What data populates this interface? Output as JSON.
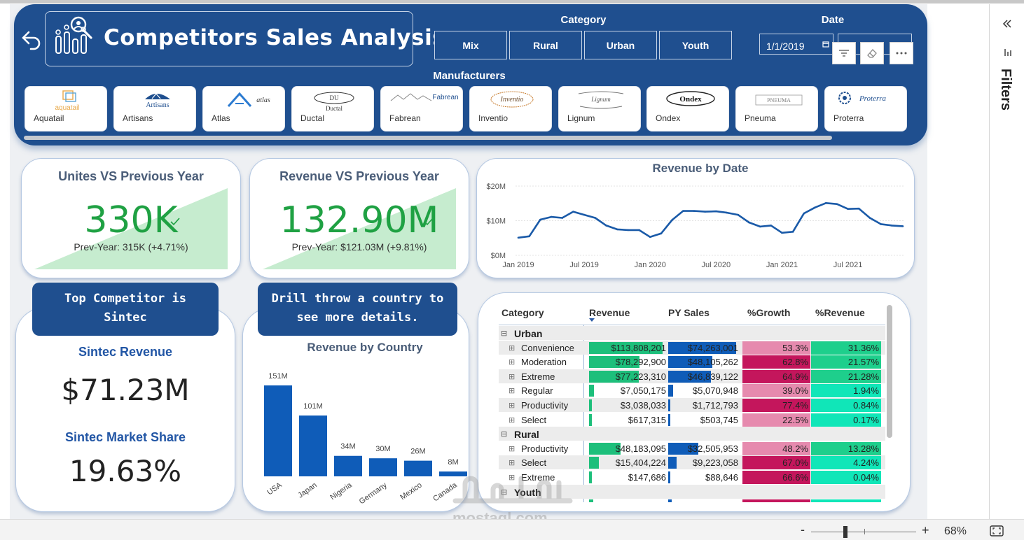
{
  "header": {
    "title": "Competitors Sales Analysis",
    "category_label": "Category",
    "categories": [
      "Mix",
      "Rural",
      "Urban",
      "Youth"
    ],
    "date_label": "Date",
    "date_start": "1/1/2019",
    "manufacturers_label": "Manufacturers",
    "manufacturers": [
      "Aquatail",
      "Artisans",
      "Atlas",
      "Ductal",
      "Fabrean",
      "Inventio",
      "Lignum",
      "Ondex",
      "Pneuma",
      "Proterra"
    ],
    "logo_texts": [
      "aquatail",
      "Artisans",
      "atlas",
      "Ductal",
      "Fabrean",
      "Inventio",
      "Lignum",
      "Ondex",
      "PNEUMA",
      "Proterra"
    ]
  },
  "kpi_units": {
    "title": "Unites VS Previous Year",
    "value": "330K",
    "sub": "Prev-Year: 315K (+4.71%)"
  },
  "kpi_revenue": {
    "title": "Revenue VS Previous Year",
    "value": "132.90M",
    "sub": "Prev-Year: $121.03M (+9.81%)"
  },
  "banners": {
    "top": "Top Competitor is Sintec",
    "drill": "Drill throw a country to see more details."
  },
  "sintec": {
    "rev_label": "Sintec Revenue",
    "rev_value": "$71.23M",
    "share_label": "Sintec Market Share",
    "share_value": "19.63%"
  },
  "chart_data": [
    {
      "type": "line",
      "title": "Revenue by Date",
      "x_ticks": [
        "Jan 2019",
        "Jul 2019",
        "Jan 2020",
        "Jul 2020",
        "Jan 2021",
        "Jul 2021"
      ],
      "y_ticks": [
        "$0M",
        "$10M",
        "$20M"
      ],
      "ylim": [
        0,
        20
      ],
      "x": [
        "2019-01",
        "2019-02",
        "2019-03",
        "2019-04",
        "2019-05",
        "2019-06",
        "2019-07",
        "2019-08",
        "2019-09",
        "2019-10",
        "2019-11",
        "2019-12",
        "2020-01",
        "2020-02",
        "2020-03",
        "2020-04",
        "2020-05",
        "2020-06",
        "2020-07",
        "2020-08",
        "2020-09",
        "2020-10",
        "2020-11",
        "2020-12",
        "2021-01",
        "2021-02",
        "2021-03",
        "2021-04",
        "2021-05",
        "2021-06",
        "2021-07",
        "2021-08",
        "2021-09",
        "2021-10",
        "2021-11",
        "2021-12"
      ],
      "values": [
        5.1,
        5.5,
        10.3,
        11.1,
        10.8,
        12.6,
        11.7,
        10.8,
        8.6,
        7.5,
        7.3,
        7.3,
        5.3,
        6.3,
        10.2,
        12.8,
        12.8,
        12.6,
        12.7,
        12.3,
        11.7,
        9.5,
        8.3,
        8.6,
        6.5,
        6.8,
        12.1,
        13.8,
        15.1,
        14.8,
        13.4,
        13.5,
        10.8,
        9.0,
        8.6,
        8.4
      ],
      "grid": true
    },
    {
      "type": "bar",
      "title": "Revenue by Country",
      "categories": [
        "USA",
        "Japan",
        "Nigeria",
        "Germany",
        "Mexico",
        "Canada"
      ],
      "values": [
        151,
        101,
        34,
        30,
        26,
        8
      ],
      "labels": [
        "151M",
        "101M",
        "34M",
        "30M",
        "26M",
        "8M"
      ]
    }
  ],
  "matrix": {
    "columns": [
      "Category",
      "Revenue",
      "PY Sales",
      "%Growth",
      "%Revenue"
    ],
    "groups": [
      "Urban",
      "Rural",
      "Youth"
    ],
    "rows": [
      {
        "type": "group",
        "label": "Urban"
      },
      {
        "type": "item",
        "label": "Convenience",
        "rev": 113808201,
        "rev_text": "$113,808,201",
        "py": 74263001,
        "py_text": "$74,263,001",
        "growth": 53.3,
        "growth_text": "53.3%",
        "share": 31.36,
        "share_text": "31.36%"
      },
      {
        "type": "item",
        "label": "Moderation",
        "rev": 78292900,
        "rev_text": "$78,292,900",
        "py": 48105262,
        "py_text": "$48,105,262",
        "growth": 62.8,
        "growth_text": "62.8%",
        "share": 21.57,
        "share_text": "21.57%"
      },
      {
        "type": "item",
        "label": "Extreme",
        "rev": 77223310,
        "rev_text": "$77,223,310",
        "py": 46839122,
        "py_text": "$46,839,122",
        "growth": 64.9,
        "growth_text": "64.9%",
        "share": 21.28,
        "share_text": "21.28%"
      },
      {
        "type": "item",
        "label": "Regular",
        "rev": 7050175,
        "rev_text": "$7,050,175",
        "py": 5070948,
        "py_text": "$5,070,948",
        "growth": 39.0,
        "growth_text": "39.0%",
        "share": 1.94,
        "share_text": "1.94%"
      },
      {
        "type": "item",
        "label": "Productivity",
        "rev": 3038033,
        "rev_text": "$3,038,033",
        "py": 1712793,
        "py_text": "$1,712,793",
        "growth": 77.4,
        "growth_text": "77.4%",
        "share": 0.84,
        "share_text": "0.84%"
      },
      {
        "type": "item",
        "label": "Select",
        "rev": 617315,
        "rev_text": "$617,315",
        "py": 503745,
        "py_text": "$503,745",
        "growth": 22.5,
        "growth_text": "22.5%",
        "share": 0.17,
        "share_text": "0.17%"
      },
      {
        "type": "group",
        "label": "Rural"
      },
      {
        "type": "item",
        "label": "Productivity",
        "rev": 48183095,
        "rev_text": "$48,183,095",
        "py": 32505953,
        "py_text": "$32,505,953",
        "growth": 48.2,
        "growth_text": "48.2%",
        "share": 13.28,
        "share_text": "13.28%"
      },
      {
        "type": "item",
        "label": "Select",
        "rev": 15404224,
        "rev_text": "$15,404,224",
        "py": 9223058,
        "py_text": "$9,223,058",
        "growth": 67.0,
        "growth_text": "67.0%",
        "share": 4.24,
        "share_text": "4.24%"
      },
      {
        "type": "item",
        "label": "Extreme",
        "rev": 147686,
        "rev_text": "$147,686",
        "py": 88646,
        "py_text": "$88,646",
        "growth": 66.6,
        "growth_text": "66.6%",
        "share": 0.04,
        "share_text": "0.04%"
      },
      {
        "type": "group",
        "label": "Youth"
      }
    ]
  },
  "right_pane": {
    "filters_label": "Filters"
  },
  "status": {
    "zoom": "68%",
    "minus": "-",
    "plus": "+"
  },
  "watermark": {
    "text": "mostaql.com"
  },
  "colors": {
    "brand": "#1f4f8f",
    "kpi_green": "#1fa143",
    "bar_blue": "#0f5cb8",
    "rev_green": "#1dbf7b",
    "growth_pink": "#e68aae",
    "growth_magenta": "#c4165c",
    "share_teal": "#10e6b8"
  }
}
